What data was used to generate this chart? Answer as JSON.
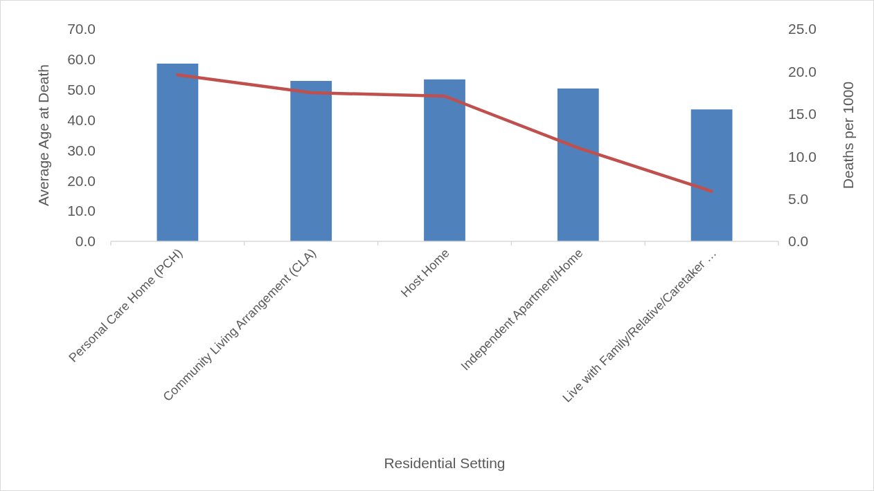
{
  "chart_data": {
    "type": "bar",
    "xlabel": "Residential Setting",
    "ylabel": "Average Age at Death",
    "y2label": "Deaths per 1000",
    "categories": [
      "Personal Care Home (PCH)",
      "Community Living Arrangement (CLA)",
      "Host Home",
      "Independent Apartment/Home",
      "Live with Family/Relative/Caretaker …"
    ],
    "series": [
      {
        "color": "#4f81bd",
        "values": [
          58.6,
          52.9,
          53.4,
          50.4,
          43.5
        ]
      },
      {
        "type": "line",
        "axis": "y2",
        "color": "#c0504d",
        "values": [
          19.6,
          17.5,
          17.1,
          11.0,
          5.9
        ]
      }
    ],
    "ylim": [
      0,
      70
    ],
    "yticks": [
      {
        "value": 0,
        "label": "0.0"
      },
      {
        "value": 10,
        "label": "10.0"
      },
      {
        "value": 20,
        "label": "20.0"
      },
      {
        "value": 30,
        "label": "30.0"
      },
      {
        "value": 40,
        "label": "40.0"
      },
      {
        "value": 50,
        "label": "50.0"
      },
      {
        "value": 60,
        "label": "60.0"
      },
      {
        "value": 70,
        "label": "70.0"
      }
    ],
    "y2lim": [
      0,
      25
    ],
    "y2ticks": [
      {
        "value": 0,
        "label": "0.0"
      },
      {
        "value": 5,
        "label": "5.0"
      },
      {
        "value": 10,
        "label": "10.0"
      },
      {
        "value": 15,
        "label": "15.0"
      },
      {
        "value": 20,
        "label": "20.0"
      },
      {
        "value": 25,
        "label": "25.0"
      }
    ],
    "grid": false,
    "marker": "none",
    "line_style": "solid"
  }
}
